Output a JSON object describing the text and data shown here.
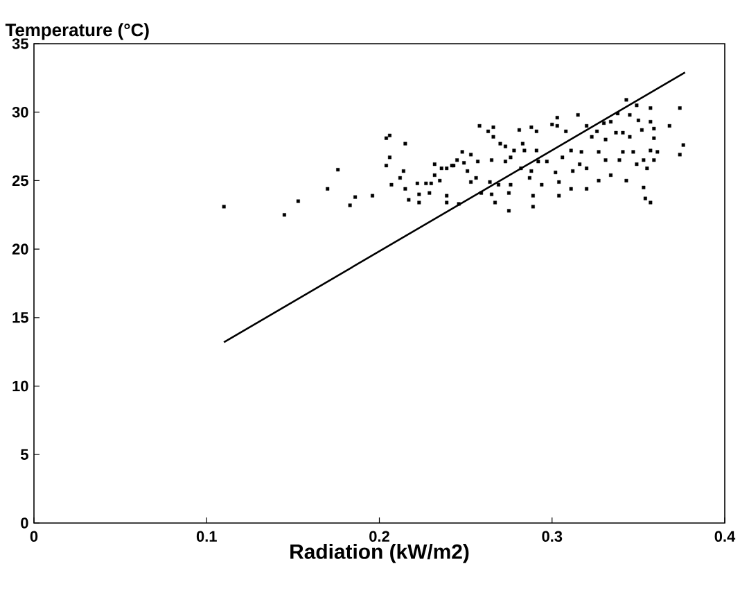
{
  "chart_data": {
    "type": "scatter",
    "xlabel": "Radiation (kW/m2)",
    "ylabel": "Temperature (°C)",
    "xlim": [
      0,
      0.4
    ],
    "ylim": [
      0,
      35
    ],
    "xticks": [
      0,
      0.1,
      0.2,
      0.3,
      0.4
    ],
    "yticks": [
      0,
      5,
      10,
      15,
      20,
      25,
      30,
      35
    ],
    "series": [
      {
        "marker": "square",
        "color": "#000000",
        "x": [
          0.11,
          0.145,
          0.153,
          0.17,
          0.176,
          0.183,
          0.186,
          0.196,
          0.204,
          0.206,
          0.215,
          0.206,
          0.204,
          0.214,
          0.212,
          0.207,
          0.215,
          0.217,
          0.222,
          0.223,
          0.223,
          0.227,
          0.23,
          0.229,
          0.232,
          0.236,
          0.232,
          0.235,
          0.242,
          0.239,
          0.239,
          0.239,
          0.243,
          0.248,
          0.245,
          0.249,
          0.246,
          0.251,
          0.253,
          0.258,
          0.257,
          0.253,
          0.256,
          0.259,
          0.263,
          0.266,
          0.266,
          0.265,
          0.264,
          0.265,
          0.267,
          0.269,
          0.27,
          0.273,
          0.273,
          0.276,
          0.276,
          0.275,
          0.275,
          0.278,
          0.281,
          0.282,
          0.283,
          0.284,
          0.288,
          0.291,
          0.291,
          0.289,
          0.289,
          0.288,
          0.287,
          0.294,
          0.292,
          0.297,
          0.3,
          0.303,
          0.303,
          0.302,
          0.304,
          0.304,
          0.308,
          0.306,
          0.311,
          0.315,
          0.311,
          0.312,
          0.317,
          0.316,
          0.32,
          0.32,
          0.32,
          0.323,
          0.326,
          0.327,
          0.327,
          0.33,
          0.331,
          0.331,
          0.334,
          0.334,
          0.337,
          0.338,
          0.339,
          0.341,
          0.343,
          0.345,
          0.345,
          0.341,
          0.343,
          0.349,
          0.349,
          0.35,
          0.347,
          0.352,
          0.353,
          0.355,
          0.357,
          0.357,
          0.359,
          0.357,
          0.353,
          0.354,
          0.357,
          0.359,
          0.359,
          0.361,
          0.368,
          0.374,
          0.376,
          0.374
        ],
        "values": [
          23.1,
          22.5,
          23.5,
          24.4,
          25.8,
          23.2,
          23.8,
          23.9,
          28.1,
          28.3,
          27.7,
          26.7,
          26.1,
          25.7,
          25.2,
          24.7,
          24.4,
          23.6,
          24.8,
          24.0,
          23.4,
          24.8,
          24.8,
          24.1,
          26.2,
          25.9,
          25.4,
          25.0,
          26.1,
          23.9,
          23.4,
          25.9,
          26.1,
          27.1,
          26.5,
          26.3,
          23.3,
          25.7,
          26.9,
          29.0,
          26.4,
          24.9,
          25.2,
          24.1,
          28.6,
          28.9,
          28.2,
          26.5,
          24.9,
          24.0,
          23.4,
          24.7,
          27.7,
          27.5,
          26.4,
          26.7,
          24.7,
          24.1,
          22.8,
          27.2,
          28.7,
          25.9,
          27.7,
          27.2,
          28.9,
          28.6,
          27.2,
          23.9,
          23.1,
          25.7,
          25.2,
          24.7,
          26.4,
          26.4,
          29.1,
          29.6,
          29.0,
          25.6,
          24.9,
          23.9,
          28.6,
          26.7,
          27.2,
          29.8,
          24.4,
          25.7,
          27.1,
          26.2,
          29.0,
          24.4,
          25.9,
          28.2,
          28.6,
          27.1,
          25.0,
          29.2,
          28.0,
          26.5,
          29.3,
          25.4,
          28.5,
          29.9,
          26.5,
          28.5,
          30.9,
          28.2,
          29.8,
          27.1,
          25.0,
          30.5,
          26.2,
          29.4,
          27.1,
          28.7,
          26.5,
          25.9,
          30.3,
          29.3,
          26.5,
          27.2,
          24.5,
          23.7,
          23.4,
          28.8,
          28.1,
          27.1,
          29.0,
          30.3,
          27.6,
          26.9
        ]
      },
      {
        "type": "line",
        "marker": "none",
        "color": "#000000",
        "x": [
          0.11,
          0.377
        ],
        "values": [
          13.2,
          32.9
        ]
      }
    ]
  }
}
